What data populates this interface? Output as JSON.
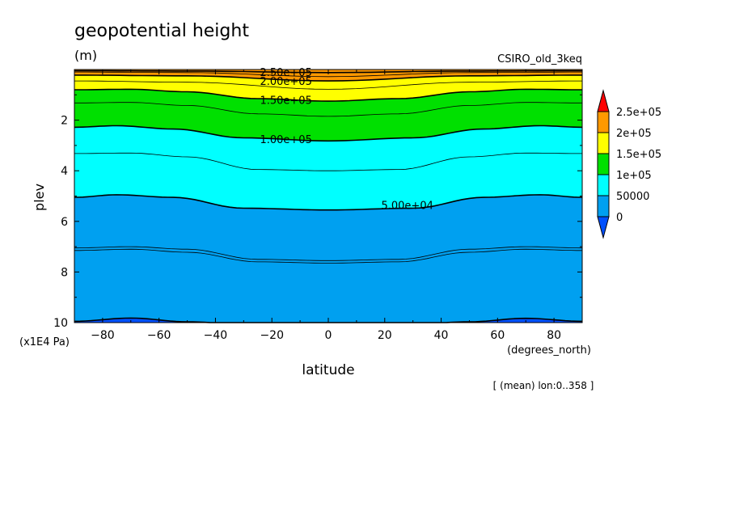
{
  "chart_data": {
    "type": "heatmap",
    "title": "geopotential height",
    "units": "(m)",
    "model": "CSIRO_old_3keq",
    "xlabel": "latitude",
    "x_units": "(degrees_north)",
    "ylabel": "plev",
    "y_units": "(x1E4 Pa)",
    "note": "[ (mean) lon:0..358 ]",
    "xlim": [
      -90,
      90
    ],
    "ylim": [
      10,
      0
    ],
    "x_ticks": [
      -80,
      -60,
      -40,
      -20,
      0,
      20,
      40,
      60,
      80
    ],
    "y_ticks": [
      2,
      4,
      6,
      8,
      10
    ],
    "contour_labels": [
      "2.50e+05",
      "2.00e+05",
      "1.50e+05",
      "1.00e+05",
      "5.00e+04"
    ],
    "colorbar": {
      "labels": [
        "2.5e+05",
        "2e+05",
        "1.5e+05",
        "1e+05",
        "50000",
        "0"
      ],
      "bins": [
        {
          "min": 250000,
          "max": null,
          "color": "#ff0000"
        },
        {
          "min": 200000,
          "max": 250000,
          "color": "#ff9900"
        },
        {
          "min": 150000,
          "max": 200000,
          "color": "#ffff00"
        },
        {
          "min": 100000,
          "max": 150000,
          "color": "#00e000"
        },
        {
          "min": 50000,
          "max": 100000,
          "color": "#00ffff"
        },
        {
          "min": 0,
          "max": 50000,
          "color": "#00a0f0"
        },
        {
          "min": null,
          "max": 0,
          "color": "#0050ff"
        }
      ]
    },
    "contours": [
      {
        "value": 0,
        "band_below_color": "#0050ff",
        "plev": [
          [
            -90,
            9.95
          ],
          [
            -70,
            9.82
          ],
          [
            -50,
            9.97
          ],
          [
            -30,
            10.05
          ],
          [
            0,
            10.05
          ],
          [
            30,
            10.05
          ],
          [
            50,
            9.97
          ],
          [
            70,
            9.83
          ],
          [
            90,
            9.95
          ]
        ]
      },
      {
        "value": 50000,
        "label": "5.00e+04",
        "plev": [
          [
            -90,
            5.05
          ],
          [
            -75,
            4.95
          ],
          [
            -55,
            5.05
          ],
          [
            -30,
            5.48
          ],
          [
            0,
            5.55
          ],
          [
            30,
            5.48
          ],
          [
            55,
            5.05
          ],
          [
            75,
            4.95
          ],
          [
            90,
            5.05
          ]
        ]
      },
      {
        "value": 100000,
        "label": "1.00e+05",
        "plev": [
          [
            -90,
            2.28
          ],
          [
            -75,
            2.22
          ],
          [
            -55,
            2.35
          ],
          [
            -30,
            2.7
          ],
          [
            0,
            2.82
          ],
          [
            30,
            2.7
          ],
          [
            55,
            2.35
          ],
          [
            75,
            2.22
          ],
          [
            90,
            2.28
          ]
        ]
      },
      {
        "value": 150000,
        "label": "1.50e+05",
        "plev": [
          [
            -90,
            0.8
          ],
          [
            -70,
            0.78
          ],
          [
            -50,
            0.88
          ],
          [
            -25,
            1.15
          ],
          [
            0,
            1.25
          ],
          [
            25,
            1.15
          ],
          [
            50,
            0.88
          ],
          [
            70,
            0.78
          ],
          [
            90,
            0.8
          ]
        ]
      },
      {
        "value": 200000,
        "label": "2.00e+05",
        "plev": [
          [
            -90,
            0.22
          ],
          [
            -50,
            0.25
          ],
          [
            0,
            0.45
          ],
          [
            50,
            0.25
          ],
          [
            90,
            0.22
          ]
        ]
      },
      {
        "value": 250000,
        "label": "2.50e+05",
        "plev": [
          [
            -90,
            0.05
          ],
          [
            -50,
            0.06
          ],
          [
            0,
            0.12
          ],
          [
            50,
            0.06
          ],
          [
            90,
            0.05
          ]
        ]
      }
    ],
    "thin_contours": [
      {
        "value": 25000,
        "plev": [
          [
            -90,
            7.05
          ],
          [
            -70,
            7.0
          ],
          [
            -50,
            7.1
          ],
          [
            -25,
            7.5
          ],
          [
            0,
            7.55
          ],
          [
            25,
            7.5
          ],
          [
            50,
            7.1
          ],
          [
            70,
            7.0
          ],
          [
            90,
            7.05
          ]
        ]
      },
      {
        "value": 24000,
        "plev": [
          [
            -90,
            7.15
          ],
          [
            -70,
            7.1
          ],
          [
            -50,
            7.22
          ],
          [
            -25,
            7.6
          ],
          [
            0,
            7.65
          ],
          [
            25,
            7.6
          ],
          [
            50,
            7.22
          ],
          [
            70,
            7.1
          ],
          [
            90,
            7.15
          ]
        ]
      },
      {
        "value": 75000,
        "plev": [
          [
            -90,
            3.32
          ],
          [
            -70,
            3.3
          ],
          [
            -50,
            3.45
          ],
          [
            -25,
            3.95
          ],
          [
            0,
            4.0
          ],
          [
            25,
            3.95
          ],
          [
            50,
            3.45
          ],
          [
            70,
            3.3
          ],
          [
            90,
            3.32
          ]
        ]
      },
      {
        "value": 125000,
        "plev": [
          [
            -90,
            1.32
          ],
          [
            -70,
            1.3
          ],
          [
            -50,
            1.42
          ],
          [
            -25,
            1.75
          ],
          [
            0,
            1.85
          ],
          [
            25,
            1.75
          ],
          [
            50,
            1.42
          ],
          [
            70,
            1.3
          ],
          [
            90,
            1.32
          ]
        ]
      },
      {
        "value": 175000,
        "plev": [
          [
            -90,
            0.45
          ],
          [
            -50,
            0.5
          ],
          [
            0,
            0.78
          ],
          [
            50,
            0.5
          ],
          [
            90,
            0.45
          ]
        ]
      },
      {
        "value": 225000,
        "plev": [
          [
            -90,
            0.1
          ],
          [
            -50,
            0.12
          ],
          [
            0,
            0.28
          ],
          [
            50,
            0.12
          ],
          [
            90,
            0.1
          ]
        ]
      }
    ],
    "grid": false
  }
}
